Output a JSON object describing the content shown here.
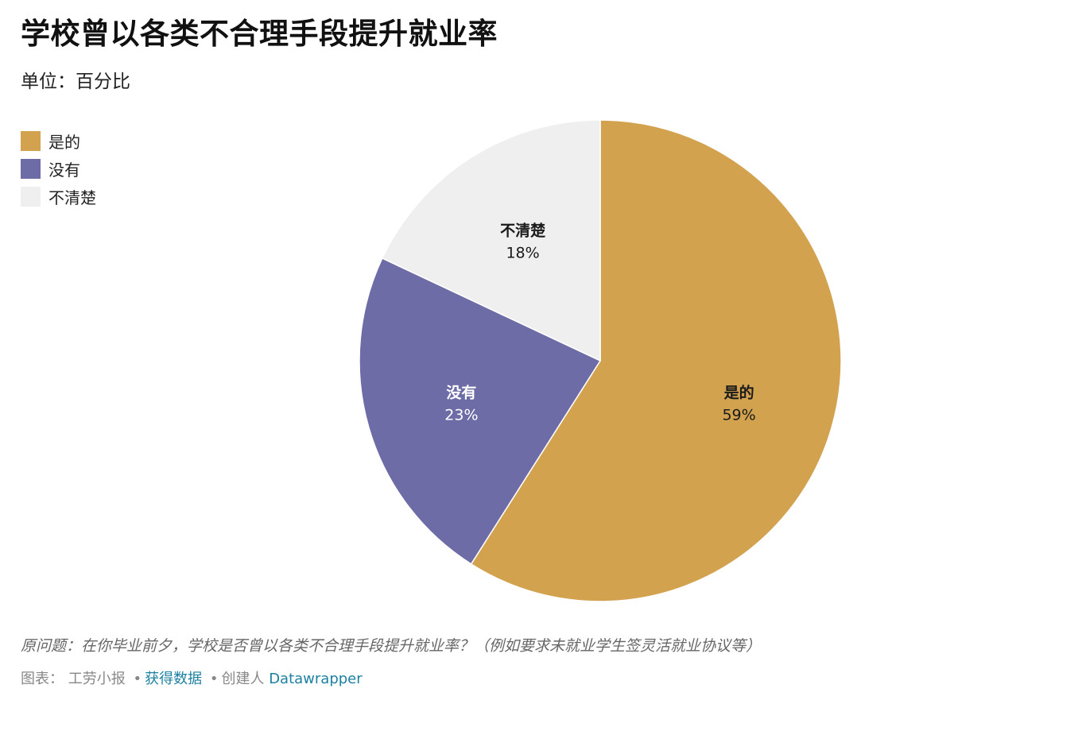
{
  "title": "学校曾以各类不合理手段提升就业率",
  "subtitle": "单位：百分比",
  "chart_data": {
    "type": "pie",
    "slices": [
      {
        "name": "是的",
        "value": 59,
        "label": "59%",
        "color": "#d2a24f",
        "text_color": "#1a1a1a"
      },
      {
        "name": "没有",
        "value": 23,
        "label": "23%",
        "color": "#6d6ca7",
        "text_color": "#ffffff"
      },
      {
        "name": "不清楚",
        "value": 18,
        "label": "18%",
        "color": "#efefef",
        "text_color": "#1a1a1a"
      }
    ],
    "legend_position": "top-left"
  },
  "note": "原问题：在你毕业前夕，学校是否曾以各类不合理手段提升就业率？（例如要求未就业学生签灵活就业协议等）",
  "footer": {
    "chart_prefix": "图表：",
    "author": "工劳小报",
    "get_data": "获得数据",
    "created_by": "创建人",
    "tool": "Datawrapper",
    "separator": "•"
  },
  "colors": {
    "link": "#1d81a2",
    "muted": "#888888"
  }
}
